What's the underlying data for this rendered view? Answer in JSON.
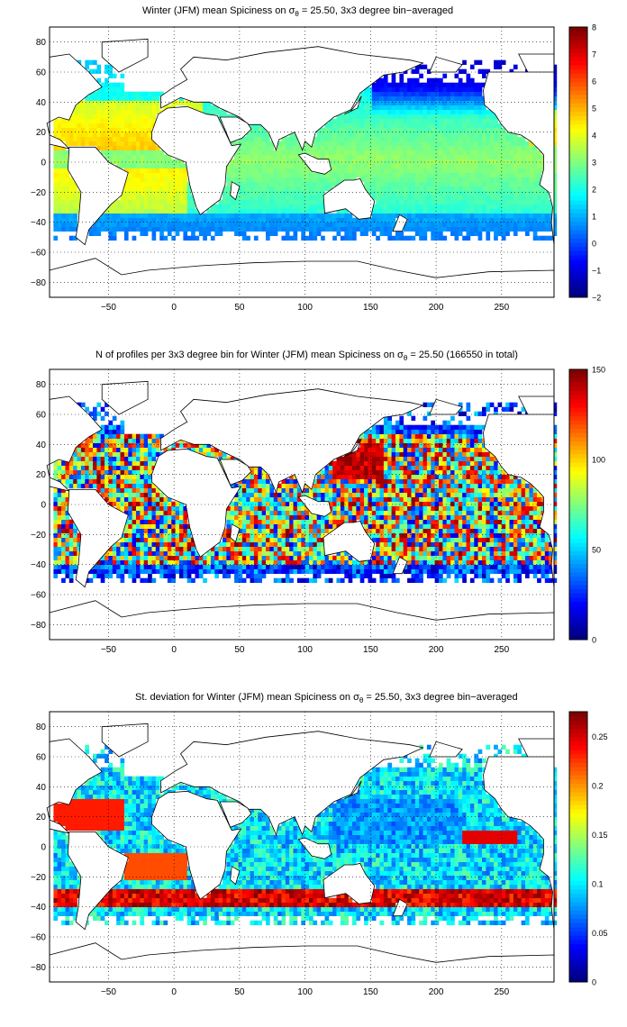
{
  "panels": [
    {
      "id": "spiciness",
      "title": {
        "prefix": "Winter (JFM) mean Spiciness on σ",
        "sub": "θ",
        "suffix": " = 25.50, 3x3 degree bin−averaged"
      },
      "xticks": [
        "−50",
        "0",
        "50",
        "100",
        "150",
        "200",
        "250"
      ],
      "yticks": [
        "80",
        "60",
        "40",
        "20",
        "0",
        "−20",
        "−40",
        "−60",
        "−80"
      ],
      "colorbar_ticks": [
        "8",
        "7",
        "6",
        "5",
        "4",
        "3",
        "2",
        "1",
        "0",
        "−1",
        "−2"
      ],
      "colorbar_range": [
        -2,
        8
      ],
      "colormap": "jet"
    },
    {
      "id": "profiles",
      "title": {
        "prefix": "N of profiles per 3x3 degree bin for Winter (JFM) mean Spiciness on σ",
        "sub": "θ",
        "suffix": " = 25.50 (166550 in total)"
      },
      "xticks": [
        "−50",
        "0",
        "50",
        "100",
        "150",
        "200",
        "250"
      ],
      "yticks": [
        "80",
        "60",
        "40",
        "20",
        "0",
        "−20",
        "−40",
        "−60",
        "−80"
      ],
      "colorbar_ticks": [
        "150",
        "100",
        "50",
        "0"
      ],
      "colorbar_range": [
        0,
        150
      ],
      "colormap": "jet"
    },
    {
      "id": "stdev",
      "title": {
        "prefix": "St. deviation for Winter (JFM) mean Spiciness on σ",
        "sub": "θ",
        "suffix": " = 25.50, 3x3 degree bin−averaged"
      },
      "xticks": [
        "−50",
        "0",
        "50",
        "100",
        "150",
        "200",
        "250"
      ],
      "yticks": [
        "80",
        "60",
        "40",
        "20",
        "0",
        "−20",
        "−40",
        "−60",
        "−80"
      ],
      "colorbar_ticks": [
        "0.25",
        "0.2",
        "0.15",
        "0.1",
        "0.05",
        "0"
      ],
      "colorbar_range": [
        0,
        0.275
      ],
      "colormap": "jet"
    }
  ],
  "map_extent": {
    "lon": [
      -95,
      290
    ],
    "lat": [
      -90,
      90
    ]
  },
  "grid": "dotted",
  "colors": {
    "land_outline": "#000000",
    "background": "#ffffff"
  }
}
